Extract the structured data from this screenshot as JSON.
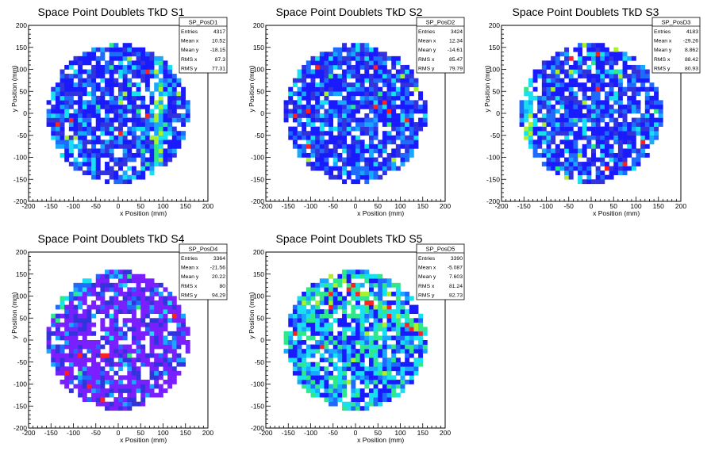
{
  "chart_data": [
    {
      "type": "heatmap",
      "title": "Space Point Doublets TkD S1",
      "xlabel": "x Position (mm)",
      "ylabel": "y Position (mm)",
      "xlim": [
        -200,
        200
      ],
      "ylim": [
        -200,
        200
      ],
      "xticks": [
        "-200",
        "-150",
        "-100",
        "-50",
        "0",
        "50",
        "100",
        "150",
        "200"
      ],
      "yticks": [
        "-200",
        "-150",
        "-100",
        "-50",
        "0",
        "50",
        "100",
        "150",
        "200"
      ],
      "radius": 160,
      "palette": "blue",
      "stats": {
        "name": "SP_PosD1",
        "rows": [
          {
            "label": "Entries",
            "value": "4317"
          },
          {
            "label": "Mean x",
            "value": "10.52"
          },
          {
            "label": "Mean y",
            "value": "-18.15"
          },
          {
            "label": "RMS x",
            "value": "87.3"
          },
          {
            "label": "RMS y",
            "value": "77.31"
          }
        ]
      }
    },
    {
      "type": "heatmap",
      "title": "Space Point Doublets TkD S2",
      "xlabel": "x Position (mm)",
      "ylabel": "y Position (mm)",
      "xlim": [
        -200,
        200
      ],
      "ylim": [
        -200,
        200
      ],
      "xticks": [
        "-200",
        "-150",
        "-100",
        "-50",
        "0",
        "50",
        "100",
        "150",
        "200"
      ],
      "yticks": [
        "-200",
        "-150",
        "-100",
        "-50",
        "0",
        "50",
        "100",
        "150",
        "200"
      ],
      "radius": 160,
      "palette": "blue",
      "stats": {
        "name": "SP_PosD2",
        "rows": [
          {
            "label": "Entries",
            "value": "3424"
          },
          {
            "label": "Mean x",
            "value": "12.34"
          },
          {
            "label": "Mean y",
            "value": "-14.61"
          },
          {
            "label": "RMS x",
            "value": "85.47"
          },
          {
            "label": "RMS y",
            "value": "79.79"
          }
        ]
      }
    },
    {
      "type": "heatmap",
      "title": "Space Point Doublets TkD S3",
      "xlabel": "x Position (mm)",
      "ylabel": "y Position (mm)",
      "xlim": [
        -200,
        200
      ],
      "ylim": [
        -200,
        200
      ],
      "xticks": [
        "-200",
        "-150",
        "-100",
        "-50",
        "0",
        "50",
        "100",
        "150",
        "200"
      ],
      "yticks": [
        "-200",
        "-150",
        "-100",
        "-50",
        "0",
        "50",
        "100",
        "150",
        "200"
      ],
      "radius": 160,
      "palette": "blue",
      "stats": {
        "name": "SP_PosD3",
        "rows": [
          {
            "label": "Entries",
            "value": "4183"
          },
          {
            "label": "Mean x",
            "value": "-29.26"
          },
          {
            "label": "Mean y",
            "value": "8.862"
          },
          {
            "label": "RMS x",
            "value": "88.42"
          },
          {
            "label": "RMS y",
            "value": "80.93"
          }
        ]
      }
    },
    {
      "type": "heatmap",
      "title": "Space Point Doublets TkD S4",
      "xlabel": "x Position (mm)",
      "ylabel": "y Position (mm)",
      "xlim": [
        -200,
        200
      ],
      "ylim": [
        -200,
        200
      ],
      "xticks": [
        "-200",
        "-150",
        "-100",
        "-50",
        "0",
        "50",
        "100",
        "150",
        "200"
      ],
      "yticks": [
        "-200",
        "-150",
        "-100",
        "-50",
        "0",
        "50",
        "100",
        "150",
        "200"
      ],
      "radius": 160,
      "palette": "violet",
      "stats": {
        "name": "SP_PosD4",
        "rows": [
          {
            "label": "Entries",
            "value": "3364"
          },
          {
            "label": "Mean x",
            "value": "-21.56"
          },
          {
            "label": "Mean y",
            "value": "20.22"
          },
          {
            "label": "RMS x",
            "value": "80"
          },
          {
            "label": "RMS y",
            "value": "94.29"
          }
        ]
      }
    },
    {
      "type": "heatmap",
      "title": "Space Point Doublets TkD S5",
      "xlabel": "x Position (mm)",
      "ylabel": "y Position (mm)",
      "xlim": [
        -200,
        200
      ],
      "ylim": [
        -200,
        200
      ],
      "xticks": [
        "-200",
        "-150",
        "-100",
        "-50",
        "0",
        "50",
        "100",
        "150",
        "200"
      ],
      "yticks": [
        "-200",
        "-150",
        "-100",
        "-50",
        "0",
        "50",
        "100",
        "150",
        "200"
      ],
      "radius": 160,
      "palette": "mixed",
      "stats": {
        "name": "SP_PosD5",
        "rows": [
          {
            "label": "Entries",
            "value": "3390"
          },
          {
            "label": "Mean x",
            "value": "-5.087"
          },
          {
            "label": "Mean y",
            "value": "7.603"
          },
          {
            "label": "RMS x",
            "value": "81.24"
          },
          {
            "label": "RMS y",
            "value": "82.73"
          }
        ]
      }
    }
  ],
  "colors": {
    "white": "#ffffff",
    "blue": "#1a1aff",
    "deep_blue": "#3333dd",
    "violet": "#7a1fff",
    "mid_blue": "#1f6bff",
    "light_blue": "#19a8ff",
    "cyan": "#18e0f0",
    "green": "#2ee88a",
    "yellow_green": "#a8f030",
    "red": "#ff2020"
  }
}
